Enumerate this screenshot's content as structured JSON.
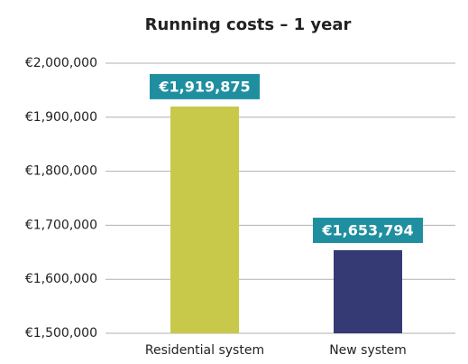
{
  "chart_data": {
    "type": "bar",
    "title": "Running costs – 1 year",
    "categories": [
      "Residential system",
      "New system"
    ],
    "values": [
      1919875,
      1653794
    ],
    "value_labels": [
      "€1,919,875",
      "€1,653,794"
    ],
    "colors": [
      "#c8c94a",
      "#353a74"
    ],
    "label_color": "#1f8fa0",
    "ylim": [
      1500000,
      2000000
    ],
    "yticks": [
      {
        "value": 1500000,
        "label": "€1,500,000"
      },
      {
        "value": 1600000,
        "label": "€1,600,000"
      },
      {
        "value": 1700000,
        "label": "€1,700,000"
      },
      {
        "value": 1800000,
        "label": "€1,800,000"
      },
      {
        "value": 1900000,
        "label": "€1,900,000"
      },
      {
        "value": 2000000,
        "label": "€2,000,000"
      }
    ],
    "grid": true
  }
}
